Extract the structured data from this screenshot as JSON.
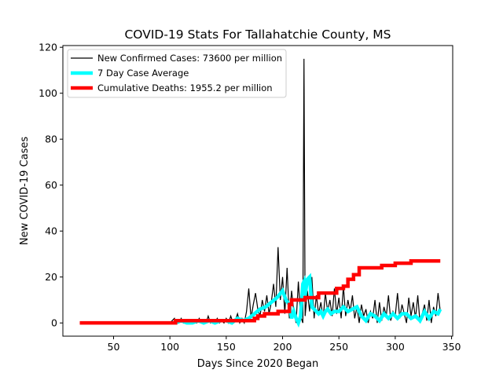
{
  "chart_data": {
    "type": "line",
    "title": "COVID-19 Stats For Tallahatchie County, MS",
    "xlabel": "Days Since 2020 Began",
    "ylabel": "New COVID-19 Cases",
    "xlim": [
      5,
      351
    ],
    "ylim": [
      -5.75,
      120.75
    ],
    "xticks": [
      50,
      100,
      150,
      200,
      250,
      300,
      350
    ],
    "yticks": [
      0,
      20,
      40,
      60,
      80,
      100,
      120
    ],
    "legend_position": "upper-left",
    "series": [
      {
        "name": "New Confirmed Cases: 73600 per million",
        "color": "#000000",
        "style": "thin-line",
        "x": [
          20,
          80,
          100,
          104,
          105,
          106,
          108,
          110,
          112,
          114,
          116,
          118,
          120,
          122,
          124,
          126,
          128,
          130,
          132,
          134,
          136,
          138,
          140,
          142,
          144,
          146,
          148,
          150,
          152,
          154,
          156,
          158,
          160,
          162,
          164,
          166,
          168,
          170,
          172,
          174,
          176,
          178,
          180,
          182,
          184,
          186,
          188,
          190,
          192,
          194,
          196,
          198,
          200,
          202,
          204,
          206,
          208,
          210,
          212,
          214,
          216,
          218,
          219,
          220,
          222,
          224,
          226,
          228,
          230,
          232,
          234,
          236,
          238,
          240,
          242,
          244,
          246,
          248,
          250,
          252,
          254,
          256,
          258,
          260,
          262,
          264,
          266,
          268,
          270,
          272,
          274,
          276,
          278,
          280,
          282,
          284,
          286,
          288,
          290,
          292,
          294,
          296,
          298,
          300,
          302,
          304,
          306,
          308,
          310,
          312,
          314,
          316,
          318,
          320,
          322,
          324,
          326,
          328,
          330,
          332,
          334,
          336,
          338,
          340
        ],
        "y": [
          0,
          0,
          0,
          2,
          0,
          1,
          0,
          2,
          0,
          1,
          0,
          0,
          1,
          0,
          0,
          2,
          0,
          1,
          0,
          3,
          0,
          1,
          0,
          2,
          0,
          1,
          0,
          2,
          0,
          3,
          0,
          1,
          4,
          0,
          2,
          0,
          5,
          15,
          2,
          8,
          13,
          6,
          3,
          10,
          5,
          12,
          4,
          9,
          17,
          7,
          33,
          10,
          20,
          4,
          24,
          2,
          14,
          5,
          0,
          18,
          3,
          0,
          115,
          3,
          14,
          5,
          20,
          2,
          12,
          4,
          9,
          2,
          13,
          5,
          10,
          3,
          15,
          4,
          11,
          2,
          16,
          3,
          10,
          5,
          12,
          2,
          7,
          0,
          8,
          3,
          6,
          0,
          5,
          2,
          10,
          0,
          9,
          1,
          7,
          3,
          12,
          1,
          5,
          3,
          13,
          2,
          8,
          4,
          0,
          11,
          3,
          9,
          2,
          12,
          0,
          4,
          8,
          1,
          10,
          0,
          7,
          3,
          13,
          5
        ],
        "values": [
          0,
          0,
          0,
          2,
          0,
          1,
          0,
          2,
          0,
          1,
          0,
          0,
          1,
          0,
          0,
          2,
          0,
          1,
          0,
          3,
          0,
          1,
          0,
          2,
          0,
          1,
          0,
          2,
          0,
          3,
          0,
          1,
          4,
          0,
          2,
          0,
          5,
          15,
          2,
          8,
          13,
          6,
          3,
          10,
          5,
          12,
          4,
          9,
          17,
          7,
          33,
          10,
          20,
          4,
          24,
          2,
          14,
          5,
          0,
          18,
          3,
          0,
          115,
          3,
          14,
          5,
          20,
          2,
          12,
          4,
          9,
          2,
          13,
          5,
          10,
          3,
          15,
          4,
          11,
          2,
          16,
          3,
          10,
          5,
          12,
          2,
          7,
          0,
          8,
          3,
          6,
          0,
          5,
          2,
          10,
          0,
          9,
          1,
          7,
          3,
          12,
          1,
          5,
          3,
          13,
          2,
          8,
          4,
          0,
          11,
          3,
          9,
          2,
          12,
          0,
          4,
          8,
          1,
          10,
          0,
          7,
          3,
          13,
          5
        ]
      },
      {
        "name": "7 Day Case Average",
        "color": "#00ffff",
        "style": "thick-line",
        "x": [
          105,
          110,
          115,
          120,
          125,
          130,
          135,
          140,
          145,
          150,
          155,
          160,
          165,
          170,
          175,
          180,
          185,
          190,
          195,
          200,
          203,
          206,
          208,
          210,
          212,
          214,
          216,
          218,
          219,
          220,
          222,
          224,
          226,
          228,
          230,
          232,
          234,
          236,
          238,
          240,
          243,
          246,
          250,
          254,
          258,
          262,
          266,
          270,
          274,
          278,
          282,
          286,
          290,
          294,
          298,
          302,
          306,
          310,
          314,
          318,
          322,
          326,
          330,
          334,
          338,
          340
        ],
        "y": [
          0,
          1,
          0,
          0,
          1,
          0,
          1,
          0,
          1,
          1,
          0,
          2,
          1,
          2,
          4,
          6,
          7,
          9,
          11,
          14,
          10,
          8,
          2,
          5,
          2,
          0,
          3,
          17,
          18,
          12,
          19,
          20,
          7,
          6,
          5,
          4,
          5,
          3,
          5,
          6,
          4,
          5,
          5,
          7,
          5,
          6,
          7,
          3,
          1,
          4,
          3,
          1,
          4,
          2,
          4,
          2,
          4,
          4,
          2,
          3,
          1,
          5,
          2,
          5,
          4,
          6
        ],
        "values": [
          0,
          1,
          0,
          0,
          1,
          0,
          1,
          0,
          1,
          1,
          0,
          2,
          1,
          2,
          4,
          6,
          7,
          9,
          11,
          14,
          10,
          8,
          2,
          5,
          2,
          0,
          3,
          17,
          18,
          12,
          19,
          20,
          7,
          6,
          5,
          4,
          5,
          3,
          5,
          6,
          4,
          5,
          5,
          7,
          5,
          6,
          7,
          3,
          1,
          4,
          3,
          1,
          4,
          2,
          4,
          2,
          4,
          4,
          2,
          3,
          1,
          5,
          2,
          5,
          4,
          6
        ]
      },
      {
        "name": "Cumulative Deaths: 1955.2 per million",
        "color": "#ff0000",
        "style": "step",
        "x": [
          20,
          105,
          105,
          148,
          148,
          175,
          175,
          178,
          178,
          184,
          184,
          196,
          196,
          206,
          206,
          208,
          208,
          220,
          220,
          232,
          232,
          248,
          248,
          254,
          254,
          258,
          258,
          263,
          263,
          268,
          268,
          272,
          272,
          288,
          288,
          300,
          300,
          314,
          314,
          340
        ],
        "y": [
          0,
          0,
          1,
          1,
          1,
          1,
          2,
          2,
          3,
          3,
          4,
          4,
          5,
          5,
          8,
          8,
          10,
          10,
          11,
          11,
          13,
          13,
          15,
          15,
          16,
          16,
          19,
          19,
          21,
          21,
          24,
          24,
          24,
          24,
          25,
          25,
          26,
          26,
          27,
          27
        ],
        "values": [
          0,
          0,
          1,
          1,
          1,
          1,
          2,
          2,
          3,
          3,
          4,
          4,
          5,
          5,
          8,
          8,
          10,
          10,
          11,
          11,
          13,
          13,
          15,
          15,
          16,
          16,
          19,
          19,
          21,
          21,
          24,
          24,
          24,
          24,
          25,
          25,
          26,
          26,
          27,
          27
        ]
      }
    ]
  }
}
